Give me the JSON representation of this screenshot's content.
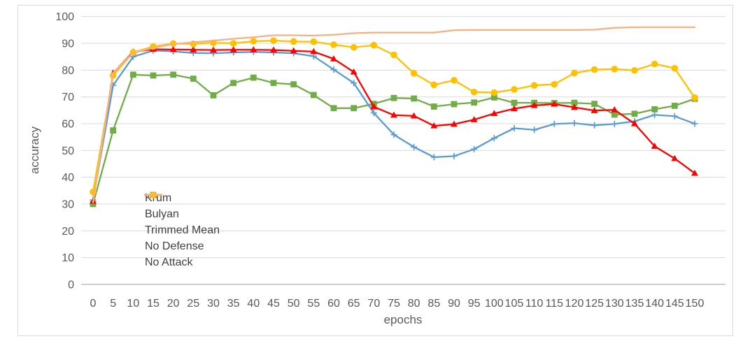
{
  "chart_data": {
    "type": "line",
    "title": "",
    "xlabel": "epochs",
    "ylabel": "accuracy",
    "x": [
      0,
      5,
      10,
      15,
      20,
      25,
      30,
      35,
      40,
      45,
      50,
      55,
      60,
      65,
      70,
      75,
      80,
      85,
      90,
      95,
      100,
      105,
      110,
      115,
      120,
      125,
      130,
      135,
      140,
      145,
      150
    ],
    "ylim": [
      0,
      100
    ],
    "ytick_step": 10,
    "grid": true,
    "legend_position": "inside-lower-left",
    "series": [
      {
        "name": "Krum",
        "color": "#70AD47",
        "marker": "square",
        "values": [
          30.0,
          57.5,
          78.3,
          78.0,
          78.3,
          76.8,
          70.6,
          75.2,
          77.2,
          75.2,
          74.7,
          70.7,
          65.8,
          65.8,
          67.4,
          69.6,
          69.4,
          66.4,
          67.3,
          67.9,
          69.8,
          67.8,
          67.8,
          67.7,
          67.8,
          67.4,
          63.4,
          63.7,
          65.4,
          66.7,
          69.3
        ]
      },
      {
        "name": "Bulyan",
        "color": "#5B9BD5",
        "marker": "plus",
        "values": [
          31.5,
          74.3,
          85.0,
          87.3,
          87.0,
          86.4,
          86.3,
          86.6,
          86.8,
          86.6,
          86.3,
          85.2,
          80.2,
          75.2,
          64.0,
          55.9,
          51.3,
          47.5,
          47.9,
          50.5,
          54.6,
          58.3,
          57.7,
          59.9,
          60.2,
          59.4,
          59.9,
          60.9,
          63.3,
          62.8,
          60.0
        ]
      },
      {
        "name": "Trimmed Mean",
        "color": "#FF0000",
        "marker": "triangle",
        "values": [
          31.0,
          78.9,
          86.8,
          87.8,
          87.7,
          87.6,
          87.5,
          87.6,
          87.6,
          87.5,
          87.2,
          86.9,
          84.2,
          79.3,
          66.3,
          63.2,
          62.9,
          59.2,
          59.8,
          61.5,
          63.8,
          65.6,
          66.8,
          67.3,
          66.1,
          64.9,
          65.2,
          60.0,
          51.6,
          47.0,
          41.5
        ]
      },
      {
        "name": "No Defense",
        "color": "#FFC000",
        "marker": "circle",
        "values": [
          34.5,
          78.0,
          86.6,
          88.8,
          89.9,
          89.8,
          90.2,
          90.0,
          90.8,
          91.0,
          90.7,
          90.6,
          89.5,
          88.5,
          89.3,
          85.7,
          78.8,
          74.5,
          76.2,
          71.8,
          71.6,
          72.8,
          74.3,
          74.7,
          78.9,
          80.2,
          80.4,
          79.9,
          82.3,
          80.7,
          69.7
        ]
      },
      {
        "name": "No Attack",
        "color": "#F4B183",
        "marker": "none",
        "values": [
          30.5,
          79.0,
          86.5,
          88.3,
          89.7,
          90.4,
          91.0,
          91.7,
          92.3,
          93.0,
          93.0,
          92.9,
          93.2,
          93.8,
          94.0,
          94.0,
          94.0,
          94.0,
          94.9,
          95.0,
          95.0,
          95.0,
          95.0,
          95.0,
          95.0,
          95.1,
          95.8,
          96.0,
          96.0,
          96.0,
          96.0
        ]
      }
    ]
  },
  "styles": {
    "axis_text_color": "#595959",
    "grid_color": "#D9D9D9",
    "axis_line_color": "#BFBFBF",
    "frame_border_color": "#D9D9D9",
    "legend_text_color": "#404040",
    "background": "#FFFFFF"
  }
}
